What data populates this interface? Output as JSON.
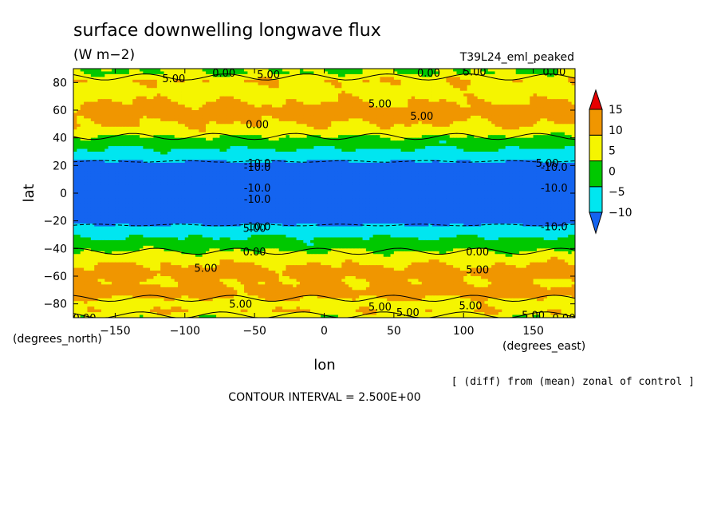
{
  "chart_data": {
    "type": "heatmap",
    "title": "surface downwelling longwave flux",
    "units": "(W m−2)",
    "dataset": "T39L24_eml_peaked",
    "xlabel": "lon",
    "ylabel": "lat",
    "x_unit_note": "(degrees_east)",
    "y_unit_note": "(degrees_north)",
    "xlim": [
      -180,
      180
    ],
    "ylim": [
      -90,
      90
    ],
    "xticks": [
      -150,
      -100,
      -50,
      0,
      50,
      100,
      150
    ],
    "xtick_labels": [
      "−150",
      "−100",
      "−50",
      "0",
      "50",
      "100",
      "150"
    ],
    "yticks": [
      80,
      60,
      40,
      20,
      0,
      -20,
      -40,
      -60,
      -80
    ],
    "ytick_labels": [
      "80",
      "60",
      "40",
      "20",
      "0",
      "−20",
      "−40",
      "−60",
      "−80"
    ],
    "colorbar": {
      "levels": [
        -10,
        -5,
        0,
        5,
        10,
        15
      ],
      "labels": [
        "−10",
        "−5",
        "0",
        "5",
        "10",
        "15"
      ],
      "colors": [
        "#1464f0",
        "#00e6f0",
        "#00c800",
        "#f5f500",
        "#f09600",
        "#e60000"
      ]
    },
    "zonal_profile": {
      "lat": [
        -90,
        -86,
        -80,
        -72,
        -64,
        -58,
        -52,
        -46,
        -38,
        -32,
        -26,
        -20,
        -10,
        0,
        10,
        20,
        26,
        32,
        38,
        44,
        50,
        58,
        66,
        74,
        82,
        86,
        90
      ],
      "value": [
        0,
        5,
        2.5,
        7.5,
        5,
        7.5,
        5,
        2.5,
        -2.5,
        -5,
        -7.5,
        -12.5,
        -12.5,
        -12.5,
        -12.5,
        -12.5,
        -7.5,
        -5,
        -2.5,
        2.5,
        5,
        7.5,
        5,
        2.5,
        5,
        0,
        0
      ]
    },
    "contour_labels": [
      "5.00",
      "0.00",
      "-10.0",
      "5.00",
      "0.00",
      "5.00",
      "5.00",
      "0.00",
      "5.00",
      "0.00",
      "5.00",
      "-10.0",
      "-10.0",
      "-10.0",
      "-10.0",
      "-10.0",
      "-10.0",
      "-10.0",
      "5.00",
      "0.00",
      "0.00",
      "5.00",
      "5.00",
      "5.00",
      "5.00",
      "5.00",
      "5.00",
      "5.00",
      "0.00",
      "0.00"
    ],
    "contour_interval": "CONTOUR INTERVAL = 2.500E+00",
    "note": "[ (diff) from (mean) zonal of control ]"
  }
}
